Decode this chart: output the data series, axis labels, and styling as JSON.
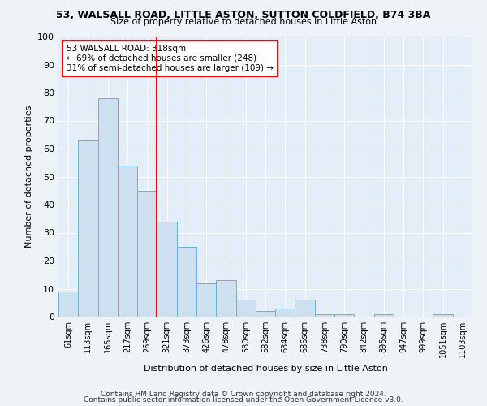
{
  "title": "53, WALSALL ROAD, LITTLE ASTON, SUTTON COLDFIELD, B74 3BA",
  "subtitle": "Size of property relative to detached houses in Little Aston",
  "xlabel": "Distribution of detached houses by size in Little Aston",
  "ylabel": "Number of detached properties",
  "categories": [
    "61sqm",
    "113sqm",
    "165sqm",
    "217sqm",
    "269sqm",
    "321sqm",
    "373sqm",
    "426sqm",
    "478sqm",
    "530sqm",
    "582sqm",
    "634sqm",
    "686sqm",
    "738sqm",
    "790sqm",
    "842sqm",
    "895sqm",
    "947sqm",
    "999sqm",
    "1051sqm",
    "1103sqm"
  ],
  "values": [
    9,
    63,
    78,
    54,
    45,
    34,
    25,
    12,
    13,
    6,
    2,
    3,
    6,
    1,
    1,
    0,
    1,
    0,
    0,
    1,
    0
  ],
  "bar_color": "#cce0f0",
  "bar_edge_color": "#6aafd6",
  "vline_x_index": 5,
  "vline_color": "red",
  "annotation_text": "53 WALSALL ROAD: 318sqm\n← 69% of detached houses are smaller (248)\n31% of semi-detached houses are larger (109) →",
  "annotation_box_color": "white",
  "annotation_box_edge_color": "red",
  "ylim": [
    0,
    100
  ],
  "yticks": [
    0,
    10,
    20,
    30,
    40,
    50,
    60,
    70,
    80,
    90,
    100
  ],
  "footer1": "Contains HM Land Registry data © Crown copyright and database right 2024.",
  "footer2": "Contains public sector information licensed under the Open Government Licence v3.0.",
  "bg_color": "#eef3f8",
  "plot_bg_color": "#e4eef8"
}
